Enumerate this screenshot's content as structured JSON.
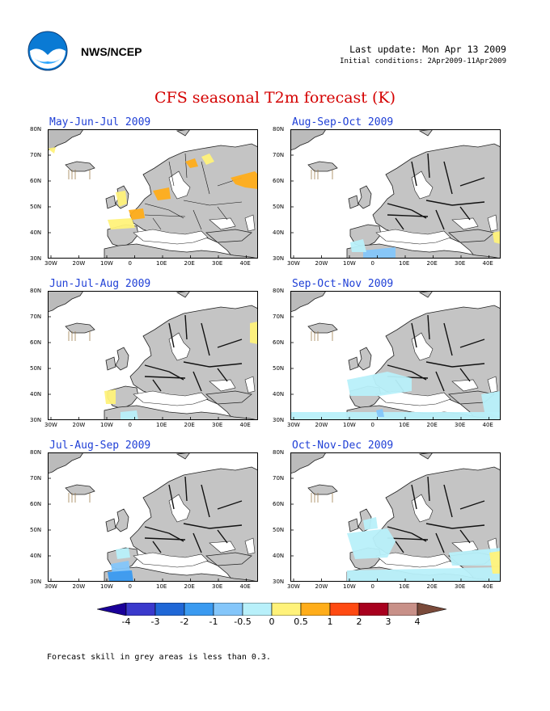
{
  "header": {
    "org": "NWS/NCEP",
    "last_update": "Last update: Mon Apr 13 2009",
    "initial_conditions": "Initial conditions: 2Apr2009-11Apr2009"
  },
  "title": "CFS seasonal T2m forecast (K)",
  "panels": [
    {
      "label": "May-Jun-Jul 2009"
    },
    {
      "label": "Aug-Sep-Oct 2009"
    },
    {
      "label": "Jun-Jul-Aug 2009"
    },
    {
      "label": "Sep-Oct-Nov 2009"
    },
    {
      "label": "Jul-Aug-Sep 2009"
    },
    {
      "label": "Oct-Nov-Dec 2009"
    }
  ],
  "axes": {
    "lat_labels": [
      "80N",
      "70N",
      "60N",
      "50N",
      "40N",
      "30N"
    ],
    "lon_labels": [
      "30W",
      "20W",
      "10W",
      "0",
      "10E",
      "20E",
      "30E",
      "40E"
    ]
  },
  "legend": {
    "colors": [
      "#1a0099",
      "#3a39cc",
      "#1f67d6",
      "#3a9af0",
      "#84c6fa",
      "#b8f0fa",
      "#fff27a",
      "#ffad1a",
      "#ff4a12",
      "#a8001e",
      "#c89088",
      "#7a4a3a"
    ],
    "labels": [
      "-4",
      "-3",
      "-2",
      "-1",
      "-0.5",
      "0",
      "0.5",
      "1",
      "2",
      "3",
      "4"
    ]
  },
  "note": "Forecast skill in grey areas is less than 0.3."
}
